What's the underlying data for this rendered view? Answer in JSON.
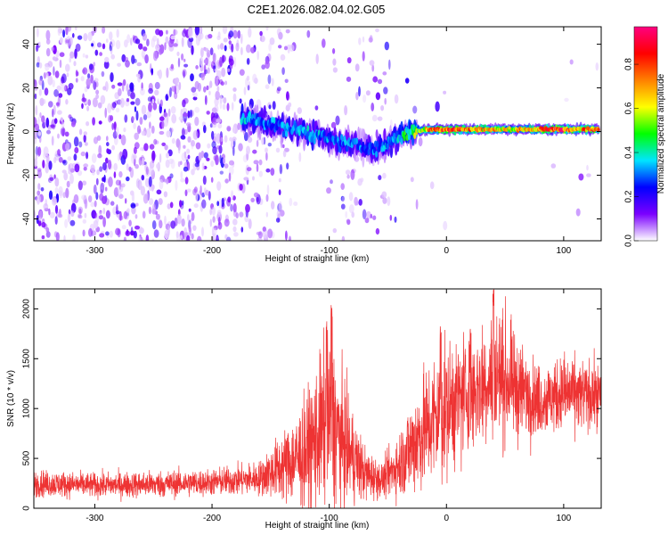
{
  "title": "C2E1.2026.082.04.02.G05",
  "chart_data": [
    {
      "type": "heatmap",
      "xlabel": "Height of straight line (km)",
      "ylabel": "Frequency (Hz)",
      "xlim": [
        -352,
        132
      ],
      "ylim": [
        -50,
        48
      ],
      "x_ticks": [
        -300,
        -200,
        -100,
        0,
        100
      ],
      "y_ticks": [
        -40,
        -20,
        0,
        20,
        40
      ],
      "colorbar": {
        "label": "Normalized spectral amplitude",
        "range": [
          0.0,
          0.97
        ],
        "ticks": [
          "0.0",
          "0.2",
          "0.4",
          "0.6",
          "0.8"
        ],
        "colors": [
          "#ffffff",
          "#7b00ff",
          "#0000ff",
          "#00e5ff",
          "#00ff00",
          "#ffff00",
          "#ff8000",
          "#ff0000",
          "#ff0080"
        ]
      },
      "ridge": [
        {
          "x": -175,
          "freq": 6,
          "amp": 0.35
        },
        {
          "x": -160,
          "freq": 5,
          "amp": 0.3
        },
        {
          "x": -140,
          "freq": 2,
          "amp": 0.3
        },
        {
          "x": -120,
          "freq": 0,
          "amp": 0.35
        },
        {
          "x": -100,
          "freq": -4,
          "amp": 0.3
        },
        {
          "x": -80,
          "freq": -6,
          "amp": 0.3
        },
        {
          "x": -60,
          "freq": -8,
          "amp": 0.28
        },
        {
          "x": -45,
          "freq": -4,
          "amp": 0.35
        },
        {
          "x": -30,
          "freq": 0,
          "amp": 0.45
        },
        {
          "x": -15,
          "freq": 1,
          "amp": 0.7
        },
        {
          "x": 0,
          "freq": 1,
          "amp": 0.8
        },
        {
          "x": 20,
          "freq": 1,
          "amp": 0.7
        },
        {
          "x": 50,
          "freq": 1,
          "amp": 0.6
        },
        {
          "x": 80,
          "freq": 1,
          "amp": 0.7
        },
        {
          "x": 95,
          "freq": 1,
          "amp": 0.85
        },
        {
          "x": 110,
          "freq": 1,
          "amp": 0.7
        },
        {
          "x": 130,
          "freq": 1,
          "amp": 0.75
        }
      ]
    },
    {
      "type": "line",
      "xlabel": "Height of straight line (km)",
      "ylabel": "SNR (10 * v/v)",
      "xlim": [
        -352,
        132
      ],
      "ylim": [
        0,
        2200
      ],
      "x_ticks": [
        -300,
        -200,
        -100,
        0,
        100
      ],
      "y_ticks": [
        0,
        500,
        1000,
        1500,
        2000
      ],
      "color": "#ee3333",
      "envelope": [
        {
          "x": -352,
          "mean": 250,
          "spread": 120
        },
        {
          "x": -300,
          "mean": 230,
          "spread": 110
        },
        {
          "x": -250,
          "mean": 240,
          "spread": 120
        },
        {
          "x": -200,
          "mean": 260,
          "spread": 120
        },
        {
          "x": -160,
          "mean": 300,
          "spread": 150
        },
        {
          "x": -135,
          "mean": 450,
          "spread": 350
        },
        {
          "x": -120,
          "mean": 550,
          "spread": 500
        },
        {
          "x": -100,
          "mean": 900,
          "spread": 800
        },
        {
          "x": -85,
          "mean": 600,
          "spread": 500
        },
        {
          "x": -70,
          "mean": 350,
          "spread": 250
        },
        {
          "x": -55,
          "mean": 280,
          "spread": 150
        },
        {
          "x": -40,
          "mean": 450,
          "spread": 300
        },
        {
          "x": -25,
          "mean": 700,
          "spread": 500
        },
        {
          "x": -10,
          "mean": 900,
          "spread": 600
        },
        {
          "x": 10,
          "mean": 1100,
          "spread": 550
        },
        {
          "x": 30,
          "mean": 1250,
          "spread": 550
        },
        {
          "x": 45,
          "mean": 1350,
          "spread": 600
        },
        {
          "x": 60,
          "mean": 1200,
          "spread": 450
        },
        {
          "x": 80,
          "mean": 1080,
          "spread": 300
        },
        {
          "x": 100,
          "mean": 1150,
          "spread": 350
        },
        {
          "x": 132,
          "mean": 1120,
          "spread": 280
        }
      ],
      "peaks": [
        {
          "x": -98,
          "y": 2100
        },
        {
          "x": -102,
          "y": 1950
        },
        {
          "x": -5,
          "y": 1850
        },
        {
          "x": 40,
          "y": 2200
        },
        {
          "x": 20,
          "y": 1800
        }
      ]
    }
  ]
}
